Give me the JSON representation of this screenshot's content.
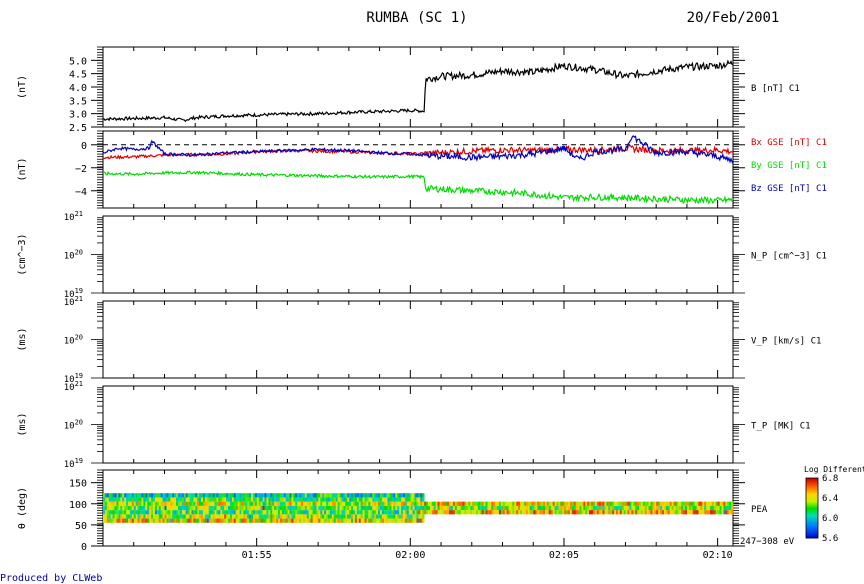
{
  "header": {
    "title": "RUMBA (SC 1)",
    "date": "20/Feb/2001"
  },
  "footer": {
    "credit": "Produced by CLWeb"
  },
  "time_axis": {
    "tick_labels": [
      "01:55",
      "02:00",
      "02:05",
      "02:10"
    ],
    "range_minutes": [
      0,
      20.5
    ],
    "label_positions_minutes": [
      5,
      10,
      15,
      20
    ]
  },
  "colors": {
    "axis": "#000000",
    "bx": "#e00000",
    "by": "#00dd00",
    "bz": "#0000c0",
    "b": "#000000",
    "footer": "#0000a0"
  },
  "chart_data": [
    {
      "type": "line",
      "id": "panel-b",
      "ylabel": "(nT)",
      "ylim": [
        2.5,
        5.5
      ],
      "yticks": [
        "2.5",
        "3.0",
        "3.5",
        "4.0",
        "4.5",
        "5.0"
      ],
      "ytick_values": [
        2.5,
        3.0,
        3.5,
        4.0,
        4.5,
        5.0
      ],
      "side_labels": [
        {
          "text": "B [nT] C1",
          "color": "#000000"
        }
      ],
      "series": [
        {
          "name": "B [nT] C1",
          "color": "#000000",
          "x": [
            0,
            1,
            2,
            2.6,
            3,
            4,
            5,
            6,
            7,
            8,
            9,
            10,
            10.45,
            10.5,
            11,
            12,
            13,
            14,
            15,
            16,
            17,
            18,
            19,
            20,
            20.5
          ],
          "y": [
            2.8,
            2.82,
            2.85,
            2.75,
            2.85,
            2.92,
            2.95,
            2.98,
            3.0,
            3.05,
            3.08,
            3.12,
            3.1,
            4.3,
            4.4,
            4.45,
            4.6,
            4.55,
            4.8,
            4.65,
            4.4,
            4.6,
            4.75,
            4.8,
            4.9
          ]
        }
      ]
    },
    {
      "type": "line",
      "id": "panel-bgse",
      "ylabel": "(nT)",
      "ylim": [
        -5.5,
        1.2
      ],
      "yticks": [
        "0",
        "−2",
        "−4"
      ],
      "ytick_values": [
        0,
        -2,
        -4
      ],
      "dashed_zero": true,
      "side_labels": [
        {
          "text": "Bx GSE [nT] C1",
          "color": "#e00000"
        },
        {
          "text": "By GSE [nT] C1",
          "color": "#00dd00"
        },
        {
          "text": "Bz GSE [nT] C1",
          "color": "#0000c0"
        }
      ],
      "series": [
        {
          "name": "Bx GSE [nT] C1",
          "color": "#e00000",
          "x": [
            0,
            1,
            2,
            3,
            4,
            5,
            6,
            7,
            8,
            9,
            10,
            11,
            12,
            13,
            14,
            15,
            16,
            17,
            18,
            19,
            20,
            20.5
          ],
          "y": [
            -1.1,
            -1.05,
            -0.9,
            -0.85,
            -0.8,
            -0.6,
            -0.5,
            -0.55,
            -0.6,
            -0.7,
            -0.8,
            -0.7,
            -0.55,
            -0.45,
            -0.5,
            -0.4,
            -0.45,
            -0.3,
            -0.5,
            -0.5,
            -0.45,
            -0.6
          ]
        },
        {
          "name": "By GSE [nT] C1",
          "color": "#00dd00",
          "x": [
            0,
            1,
            2,
            3,
            4,
            5,
            6,
            7,
            8,
            9,
            10,
            10.45,
            10.5,
            11,
            12,
            13,
            14,
            15,
            16,
            17,
            18,
            19,
            20,
            20.5
          ],
          "y": [
            -2.5,
            -2.55,
            -2.45,
            -2.4,
            -2.5,
            -2.6,
            -2.65,
            -2.7,
            -2.75,
            -2.8,
            -2.75,
            -2.8,
            -3.8,
            -3.85,
            -4.0,
            -4.1,
            -4.3,
            -4.6,
            -4.55,
            -4.6,
            -4.7,
            -4.8,
            -4.85,
            -4.8
          ]
        },
        {
          "name": "Bz GSE [nT] C1",
          "color": "#0000c0",
          "x": [
            0,
            0.5,
            1,
            1.5,
            1.6,
            2,
            3,
            4,
            5,
            6,
            7,
            8,
            9,
            10,
            11,
            12,
            13,
            14,
            15,
            15.5,
            16,
            17,
            17.2,
            18,
            19,
            20,
            20.5
          ],
          "y": [
            -0.7,
            -0.3,
            -0.4,
            -0.3,
            0.3,
            -0.8,
            -0.9,
            -0.7,
            -0.6,
            -0.5,
            -0.4,
            -0.5,
            -0.7,
            -0.8,
            -1.0,
            -1.1,
            -1.0,
            -0.8,
            -0.3,
            -1.3,
            -0.6,
            -0.4,
            0.8,
            -0.7,
            -0.6,
            -1.0,
            -1.4
          ]
        }
      ]
    },
    {
      "type": "line",
      "id": "panel-np",
      "ylabel": "(cm^−3)",
      "ylim_log": [
        19,
        21
      ],
      "yticks": [
        {
          "base": "10",
          "exp": "21"
        },
        {
          "base": "10",
          "exp": "20"
        },
        {
          "base": "10",
          "exp": "19"
        }
      ],
      "ytick_values": [
        21,
        20,
        19
      ],
      "side_labels": [
        {
          "text": "N_P [cm^−3] C1",
          "color": "#000000"
        }
      ],
      "series": []
    },
    {
      "type": "line",
      "id": "panel-vp",
      "ylabel": "(ms)",
      "ylim_log": [
        19,
        21
      ],
      "yticks": [
        {
          "base": "10",
          "exp": "21"
        },
        {
          "base": "10",
          "exp": "20"
        },
        {
          "base": "10",
          "exp": "19"
        }
      ],
      "ytick_values": [
        21,
        20,
        19
      ],
      "side_labels": [
        {
          "text": "V_P [km/s] C1",
          "color": "#000000"
        }
      ],
      "series": []
    },
    {
      "type": "line",
      "id": "panel-tp",
      "ylabel": "(ms)",
      "ylim_log": [
        19,
        21
      ],
      "yticks": [
        {
          "base": "10",
          "exp": "21"
        },
        {
          "base": "10",
          "exp": "20"
        },
        {
          "base": "10",
          "exp": "19"
        }
      ],
      "ytick_values": [
        21,
        20,
        19
      ],
      "side_labels": [
        {
          "text": "T_P [MK] C1",
          "color": "#000000"
        }
      ],
      "series": []
    },
    {
      "type": "heatmap",
      "id": "panel-pea",
      "ylabel": "θ (deg)",
      "ylim": [
        0,
        180
      ],
      "yticks": [
        "0",
        "50",
        "100",
        "150"
      ],
      "ytick_values": [
        0,
        50,
        100,
        150
      ],
      "side_labels": [
        {
          "text": "PEA",
          "color": "#000000"
        }
      ],
      "energy_label": "247−308 eV",
      "colorbar": {
        "title": "Log Differenti",
        "ticks": [
          "6.8",
          "6.4",
          "6.0",
          "5.6"
        ],
        "tick_values": [
          6.8,
          6.4,
          6.0,
          5.6
        ],
        "range": [
          5.6,
          6.8
        ]
      },
      "segments": [
        {
          "x_range": [
            0,
            10.45
          ],
          "theta_bins": [
            60,
            70,
            80,
            90,
            100,
            110,
            120
          ],
          "mean_by_bin": [
            6.45,
            6.3,
            6.2,
            6.25,
            6.35,
            6.2,
            6.05
          ]
        },
        {
          "x_range": [
            10.45,
            20.5
          ],
          "theta_bins": [
            80,
            90,
            100
          ],
          "mean_by_bin": [
            6.5,
            6.3,
            6.45
          ]
        }
      ]
    }
  ]
}
